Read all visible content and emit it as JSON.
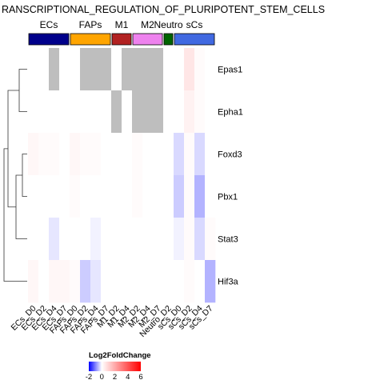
{
  "chart_data": {
    "type": "heatmap",
    "title": "RANSCRIPTIONAL_REGULATION_OF_PLURIPOTENT_STEM_CELLS",
    "groups": [
      {
        "name": "ECs",
        "color": "#00008b"
      },
      {
        "name": "FAPs",
        "color": "#ffa500"
      },
      {
        "name": "M1",
        "color": "#b22222"
      },
      {
        "name": "M2",
        "color": "#ee82ee"
      },
      {
        "name": "Neutro",
        "color": "#006400"
      },
      {
        "name": "sCs",
        "color": "#4169e1"
      }
    ],
    "columns": [
      {
        "label": "ECs_D0",
        "group": "ECs"
      },
      {
        "label": "ECs_D2",
        "group": "ECs"
      },
      {
        "label": "ECs_D4",
        "group": "ECs"
      },
      {
        "label": "ECs_D7",
        "group": "ECs"
      },
      {
        "label": "FAPs_D0",
        "group": "FAPs"
      },
      {
        "label": "FAPs_D2",
        "group": "FAPs"
      },
      {
        "label": "FAPs_D4",
        "group": "FAPs"
      },
      {
        "label": "FAPs_D7",
        "group": "FAPs"
      },
      {
        "label": "M1_D2",
        "group": "M1"
      },
      {
        "label": "M1_D4",
        "group": "M1"
      },
      {
        "label": "M2_D2",
        "group": "M2"
      },
      {
        "label": "M2_D4",
        "group": "M2"
      },
      {
        "label": "M2_D7",
        "group": "M2"
      },
      {
        "label": "Neutro_D2",
        "group": "Neutro"
      },
      {
        "label": "sCs_D0",
        "group": "sCs"
      },
      {
        "label": "sCs_D2",
        "group": "sCs"
      },
      {
        "label": "sCs_D4",
        "group": "sCs"
      },
      {
        "label": "sCs_D7",
        "group": "sCs"
      }
    ],
    "rows": [
      "Epas1",
      "Epha1",
      "Foxd3",
      "Pbx1",
      "Stat3",
      "Hif3a"
    ],
    "values": [
      [
        0.0,
        0.0,
        null,
        0.0,
        0.0,
        null,
        null,
        null,
        0.0,
        null,
        null,
        null,
        null,
        0.0,
        0.0,
        0.6,
        0.1,
        0.0
      ],
      [
        0.0,
        0.0,
        0.0,
        0.0,
        0.0,
        0.0,
        0.0,
        0.0,
        null,
        0.0,
        null,
        null,
        null,
        0.0,
        0.0,
        0.3,
        0.1,
        0.0
      ],
      [
        0.2,
        0.1,
        0.1,
        0.0,
        0.2,
        0.1,
        0.1,
        0.0,
        0.0,
        0.0,
        0.1,
        0.0,
        0.0,
        0.0,
        -0.3,
        0.1,
        -0.3,
        0.0
      ],
      [
        0.0,
        0.0,
        0.0,
        0.0,
        0.1,
        0.0,
        0.0,
        0.0,
        0.0,
        0.0,
        0.1,
        0.0,
        0.0,
        0.0,
        -0.4,
        0.1,
        -0.6,
        0.0
      ],
      [
        0.0,
        0.0,
        -0.2,
        0.0,
        0.0,
        0.0,
        -0.1,
        0.0,
        0.0,
        0.0,
        0.0,
        0.0,
        0.0,
        0.0,
        -0.1,
        0.1,
        -0.3,
        0.1
      ],
      [
        0.2,
        0.0,
        0.2,
        0.2,
        0.1,
        -0.4,
        -0.2,
        0.0,
        0.0,
        0.0,
        0.0,
        0.0,
        0.0,
        0.0,
        0.0,
        0.1,
        0.0,
        -0.6
      ]
    ],
    "color_scale": {
      "title": "Log2FoldChange",
      "min": -2,
      "max": 6,
      "ticks": [
        -2,
        0,
        2,
        4,
        6
      ],
      "low_color": "#0000ff",
      "mid_color": "#ffffff",
      "high_color": "#ff0000",
      "na_color": "#bebebe"
    },
    "dendrogram": "rows",
    "legend_position": "bottom"
  }
}
